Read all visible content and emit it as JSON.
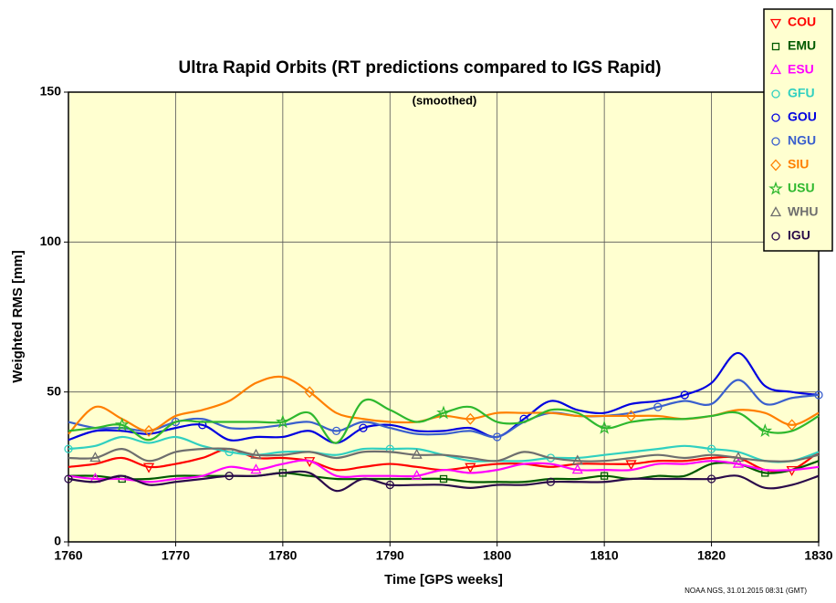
{
  "chart_data": {
    "type": "line",
    "title": "Ultra Rapid Orbits (RT predictions compared to IGS Rapid)",
    "subtitle": "(smoothed)",
    "xlabel": "Time [GPS weeks]",
    "ylabel": "Weighted RMS [mm]",
    "footer": "NOAA NGS, 31.01.2015 08:31 (GMT)",
    "xlim": [
      1760,
      1830
    ],
    "xticks": [
      1760,
      1770,
      1780,
      1790,
      1800,
      1810,
      1820,
      1830
    ],
    "ylim": [
      0,
      150
    ],
    "yticks": [
      0,
      50,
      100,
      150
    ],
    "grid": true,
    "legend": "upper right",
    "x": [
      1760,
      1762.5,
      1765,
      1767.5,
      1770,
      1772.5,
      1775,
      1777.5,
      1780,
      1782.5,
      1785,
      1787.5,
      1790,
      1792.5,
      1795,
      1797.5,
      1800,
      1802.5,
      1805,
      1807.5,
      1810,
      1812.5,
      1815,
      1817.5,
      1820,
      1822.5,
      1825,
      1827.5,
      1830
    ],
    "series": [
      {
        "name": "COU",
        "color": "#ff0000",
        "marker": "triangle-down",
        "values": [
          25,
          26,
          28,
          25,
          26,
          28,
          31,
          28,
          28,
          27,
          24,
          25,
          26,
          25,
          24,
          25,
          26,
          26,
          25,
          26,
          26,
          26,
          27,
          27,
          28,
          28,
          24,
          24,
          30
        ]
      },
      {
        "name": "EMU",
        "color": "#005a00",
        "marker": "square",
        "values": [
          22,
          22,
          21,
          21,
          22,
          22,
          22,
          22,
          23,
          22,
          21,
          21,
          21,
          21,
          21,
          20,
          20,
          20,
          21,
          21,
          22,
          21,
          22,
          22,
          26,
          26,
          23,
          24,
          27
        ]
      },
      {
        "name": "ESU",
        "color": "#ff00ff",
        "marker": "triangle-up",
        "values": [
          22,
          21,
          21,
          20,
          21,
          22,
          25,
          24,
          26,
          27,
          22,
          22,
          22,
          22,
          24,
          23,
          24,
          26,
          26,
          24,
          24,
          24,
          26,
          26,
          27,
          26,
          24,
          24,
          25
        ]
      },
      {
        "name": "GFU",
        "color": "#30d0c0",
        "marker": "circle",
        "values": [
          31,
          32,
          35,
          33,
          35,
          32,
          30,
          29,
          30,
          30,
          29,
          31,
          31,
          31,
          29,
          27,
          27,
          27,
          28,
          28,
          29,
          30,
          31,
          32,
          31,
          30,
          27,
          27,
          30
        ]
      },
      {
        "name": "GOU",
        "color": "#0000e0",
        "marker": "circle",
        "values": [
          34,
          37,
          37,
          36,
          38,
          39,
          34,
          35,
          35,
          37,
          33,
          38,
          39,
          37,
          37,
          38,
          35,
          41,
          47,
          44,
          43,
          46,
          47,
          49,
          53,
          63,
          52,
          50,
          49
        ]
      },
      {
        "name": "NGU",
        "color": "#3a5fcd",
        "marker": "circle",
        "values": [
          40,
          38,
          38,
          37,
          40,
          41,
          38,
          38,
          39,
          40,
          37,
          40,
          38,
          36,
          36,
          37,
          35,
          40,
          43,
          42,
          42,
          43,
          45,
          47,
          46,
          54,
          46,
          48,
          49
        ]
      },
      {
        "name": "SIU",
        "color": "#ff7f00",
        "marker": "diamond",
        "values": [
          36,
          45,
          41,
          37,
          42,
          44,
          47,
          53,
          55,
          50,
          43,
          41,
          40,
          40,
          42,
          41,
          43,
          43,
          43,
          42,
          42,
          42,
          42,
          41,
          42,
          44,
          43,
          39,
          43
        ]
      },
      {
        "name": "USU",
        "color": "#2eb82e",
        "marker": "star",
        "values": [
          37,
          38,
          39,
          34,
          40,
          40,
          40,
          40,
          40,
          43,
          33,
          47,
          44,
          40,
          43,
          45,
          40,
          40,
          44,
          43,
          38,
          40,
          41,
          41,
          42,
          43,
          37,
          37,
          42
        ]
      },
      {
        "name": "WHU",
        "color": "#6e6e6e",
        "marker": "triangle-up",
        "values": [
          28,
          28,
          31,
          27,
          30,
          31,
          31,
          29,
          29,
          30,
          28,
          30,
          30,
          29,
          29,
          28,
          27,
          30,
          28,
          27,
          27,
          28,
          29,
          28,
          29,
          28,
          27,
          27,
          29
        ]
      },
      {
        "name": "IGU",
        "color": "#2a0a4a",
        "marker": "circle",
        "values": [
          21,
          20,
          22,
          19,
          20,
          21,
          22,
          22,
          23,
          23,
          17,
          21,
          19,
          19,
          19,
          18,
          19,
          19,
          20,
          20,
          20,
          21,
          21,
          21,
          21,
          22,
          18,
          19,
          22
        ]
      }
    ]
  }
}
